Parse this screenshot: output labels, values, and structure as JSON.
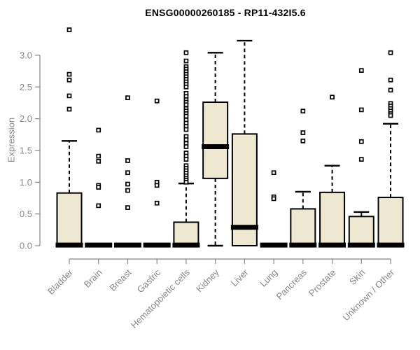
{
  "chart_data": {
    "type": "box",
    "title": "ENSG00000260185 - RP11-432I5.6",
    "ylabel": "Expression",
    "xlabel": "",
    "yticks": [
      "0.0",
      "0.5",
      "1.0",
      "1.5",
      "2.0",
      "2.5",
      "3.0"
    ],
    "ylim": [
      0,
      3.45
    ],
    "grid": false,
    "legend": "none",
    "colors": {
      "box_fill": "#EDE8CF",
      "box_border": "#000000",
      "median": "#000000",
      "whisker": "#000000",
      "outlier_stroke": "#000000",
      "outlier_fill": "#ffffff",
      "axis": "#878787",
      "title": "#000000"
    },
    "categories": [
      "Bladder",
      "Brain",
      "Breast",
      "Gastric",
      "Hematopoietic cells",
      "Kidney",
      "Liver",
      "Lung",
      "Pancreas",
      "Prostate",
      "Skin",
      "Unknown / Other"
    ],
    "series": [
      {
        "name": "Bladder",
        "q1": 0.0,
        "median": 0.01,
        "q3": 0.83,
        "whisker_low": 0.0,
        "whisker_high": 1.65,
        "outliers": [
          3.4,
          2.7,
          2.61,
          2.36,
          2.15
        ]
      },
      {
        "name": "Brain",
        "q1": 0.0,
        "median": 0.01,
        "q3": 0.0,
        "whisker_low": 0.0,
        "whisker_high": 0.0,
        "outliers": [
          1.82,
          1.41,
          1.33,
          0.95,
          0.92,
          0.63
        ]
      },
      {
        "name": "Breast",
        "q1": 0.0,
        "median": 0.01,
        "q3": 0.0,
        "whisker_low": 0.0,
        "whisker_high": 0.0,
        "outliers": [
          2.33,
          1.34,
          1.15,
          0.97,
          0.87,
          0.6
        ]
      },
      {
        "name": "Gastric",
        "q1": 0.0,
        "median": 0.01,
        "q3": 0.0,
        "whisker_low": 0.0,
        "whisker_high": 0.0,
        "outliers": [
          2.28,
          1.0,
          0.95,
          0.67
        ]
      },
      {
        "name": "Hematopoietic cells",
        "q1": 0.0,
        "median": 0.01,
        "q3": 0.37,
        "whisker_low": 0.0,
        "whisker_high": 0.98,
        "outliers": [
          3.04,
          2.91,
          2.82,
          2.78,
          2.74,
          2.7,
          2.66,
          2.62,
          2.58,
          2.54,
          2.5,
          2.4,
          2.35,
          2.3,
          2.26,
          2.22,
          2.16,
          2.12,
          2.08,
          2.04,
          1.98,
          1.93,
          1.88,
          1.83,
          1.72,
          1.67,
          1.61,
          1.56,
          1.46,
          1.41,
          1.36,
          1.26,
          1.22,
          1.18,
          1.14,
          1.1,
          1.06,
          1.03,
          1.0
        ]
      },
      {
        "name": "Kidney",
        "q1": 1.06,
        "median": 1.56,
        "q3": 2.26,
        "whisker_low": 0.0,
        "whisker_high": 3.04,
        "outliers": []
      },
      {
        "name": "Liver",
        "q1": 0.0,
        "median": 0.29,
        "q3": 1.76,
        "whisker_low": 0.0,
        "whisker_high": 3.23,
        "outliers": []
      },
      {
        "name": "Lung",
        "q1": 0.0,
        "median": 0.01,
        "q3": 0.0,
        "whisker_low": 0.0,
        "whisker_high": 0.0,
        "outliers": [
          1.15,
          0.77,
          0.74
        ]
      },
      {
        "name": "Pancreas",
        "q1": 0.0,
        "median": 0.01,
        "q3": 0.58,
        "whisker_low": 0.0,
        "whisker_high": 0.85,
        "outliers": [
          2.12,
          1.78,
          1.65
        ]
      },
      {
        "name": "Prostate",
        "q1": 0.0,
        "median": 0.01,
        "q3": 0.84,
        "whisker_low": 0.0,
        "whisker_high": 1.26,
        "outliers": [
          2.34
        ]
      },
      {
        "name": "Skin",
        "q1": 0.0,
        "median": 0.01,
        "q3": 0.46,
        "whisker_low": 0.0,
        "whisker_high": 0.53,
        "outliers": [
          2.76,
          2.14,
          1.64,
          1.36
        ]
      },
      {
        "name": "Unknown / Other",
        "q1": 0.0,
        "median": 0.01,
        "q3": 0.76,
        "whisker_low": 0.0,
        "whisker_high": 1.92,
        "outliers": [
          3.04,
          2.61,
          2.45,
          2.24,
          2.2,
          2.16,
          2.12,
          2.08,
          2.05
        ]
      }
    ]
  }
}
